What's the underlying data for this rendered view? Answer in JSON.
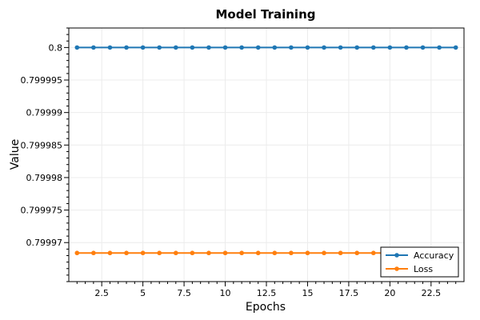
{
  "chart_data": {
    "type": "line",
    "title": "Model Training",
    "xlabel": "Epochs",
    "ylabel": "Value",
    "x": [
      1,
      2,
      3,
      4,
      5,
      6,
      7,
      8,
      9,
      10,
      11,
      12,
      13,
      14,
      15,
      16,
      17,
      18,
      19,
      20,
      21,
      22,
      23,
      24
    ],
    "xlim": [
      0.5,
      24.5
    ],
    "ylim": [
      0.799964,
      0.800003
    ],
    "x_ticks": [
      2.5,
      5,
      7.5,
      10,
      12.5,
      15,
      17.5,
      20,
      22.5
    ],
    "x_tick_labels": [
      "2.5",
      "5",
      "7.5",
      "10",
      "12.5",
      "15",
      "17.5",
      "20",
      "22.5"
    ],
    "y_ticks": [
      0.79997,
      0.799975,
      0.79998,
      0.799985,
      0.79999,
      0.799995,
      0.8
    ],
    "y_tick_labels": [
      "0.79997",
      "0.799975",
      "0.79998",
      "0.799985",
      "0.79999",
      "0.799995",
      "0.8"
    ],
    "grid": true,
    "legend_position": "bottom-right",
    "series": [
      {
        "name": "Accuracy",
        "color": "#1f77b4",
        "values": [
          0.8,
          0.8,
          0.8,
          0.8,
          0.8,
          0.8,
          0.8,
          0.8,
          0.8,
          0.8,
          0.8,
          0.8,
          0.8,
          0.8,
          0.8,
          0.8,
          0.8,
          0.8,
          0.8,
          0.8,
          0.8,
          0.8,
          0.8,
          0.8
        ]
      },
      {
        "name": "Loss",
        "color": "#ff7f0e",
        "values": [
          0.7999684,
          0.7999684,
          0.7999684,
          0.7999684,
          0.7999684,
          0.7999684,
          0.7999684,
          0.7999684,
          0.7999684,
          0.7999684,
          0.7999684,
          0.7999684,
          0.7999684,
          0.7999684,
          0.7999684,
          0.7999684,
          0.7999684,
          0.7999684,
          0.7999684,
          0.7999684,
          0.7999684,
          0.7999684,
          0.7999684,
          0.7999684
        ]
      }
    ]
  }
}
